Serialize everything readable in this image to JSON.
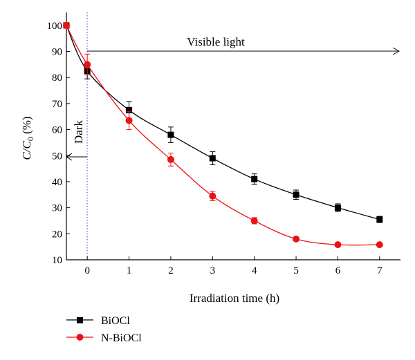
{
  "chart_data": {
    "type": "line",
    "title": "",
    "xlabel": "Irradiation time (h)",
    "ylabel": {
      "main": "C/C",
      "sub": "0",
      "unit": " (%)"
    },
    "xlim": [
      -0.5,
      7.5
    ],
    "ylim": [
      10,
      105
    ],
    "xticks": [
      0,
      1,
      2,
      3,
      4,
      5,
      6,
      7
    ],
    "yticks": [
      10,
      20,
      30,
      40,
      50,
      60,
      70,
      80,
      90,
      100
    ],
    "grid": false,
    "legend_position": "bottom-left, below plot",
    "series": [
      {
        "name": "BiOCl",
        "color": "#000000",
        "marker": "square",
        "x": [
          -0.5,
          0,
          1,
          2,
          3,
          4,
          5,
          6,
          7
        ],
        "y": [
          100,
          82.5,
          67.5,
          58,
          49,
          41,
          35,
          30,
          25.5
        ],
        "err": [
          0,
          3,
          3.3,
          3,
          2.5,
          2,
          1.8,
          1.5,
          1.2
        ]
      },
      {
        "name": "N-BiOCl",
        "color": "#ee1111",
        "marker": "circle",
        "x": [
          -0.5,
          0,
          1,
          2,
          3,
          4,
          5,
          6,
          7
        ],
        "y": [
          100,
          85,
          63.5,
          48.5,
          34.5,
          25,
          18,
          15.8,
          15.8
        ],
        "err": [
          0,
          4,
          3.5,
          2.5,
          1.8,
          1.2,
          0,
          0,
          0
        ]
      }
    ],
    "annotations": {
      "visible_light": "Visible light",
      "dark": "Dark"
    }
  }
}
